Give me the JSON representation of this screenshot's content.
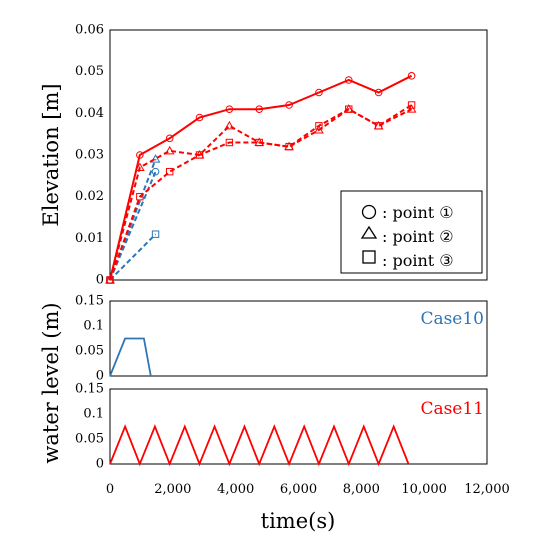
{
  "chart_data": [
    {
      "type": "line",
      "ylabel": "Elevation [m]",
      "xlim": [
        0,
        12000
      ],
      "ylim": [
        0,
        0.06
      ],
      "yticks": [
        "0",
        "0.01",
        "0.02",
        "0.03",
        "0.04",
        "0.05",
        "0.06"
      ],
      "legend": {
        "position": "bottom-right",
        "entries": [
          {
            "marker": "circle",
            "label": ": point ①"
          },
          {
            "marker": "triangle",
            "label": ": point ②"
          },
          {
            "marker": "square",
            "label": ": point ③"
          }
        ]
      },
      "series": [
        {
          "case": "Case10",
          "point": "①",
          "marker": "circle",
          "color": "#2E75B6",
          "dash": true,
          "x": [
            0,
            1450
          ],
          "y": [
            0,
            0.026
          ]
        },
        {
          "case": "Case10",
          "point": "②",
          "marker": "triangle",
          "color": "#2E75B6",
          "dash": true,
          "x": [
            0,
            1450
          ],
          "y": [
            0,
            0.029
          ]
        },
        {
          "case": "Case10",
          "point": "③",
          "marker": "square",
          "color": "#2E75B6",
          "dash": true,
          "x": [
            0,
            1450
          ],
          "y": [
            0,
            0.011
          ]
        },
        {
          "case": "Case11",
          "point": "①",
          "marker": "circle",
          "color": "#FF0000",
          "dash": false,
          "x": [
            0,
            950,
            1900,
            2850,
            3800,
            4750,
            5700,
            6650,
            7600,
            8550,
            9600
          ],
          "y": [
            0,
            0.03,
            0.034,
            0.039,
            0.041,
            0.041,
            0.042,
            0.045,
            0.048,
            0.045,
            0.049
          ]
        },
        {
          "case": "Case11",
          "point": "②",
          "marker": "triangle",
          "color": "#FF0000",
          "dash": true,
          "x": [
            0,
            950,
            1900,
            2850,
            3800,
            4750,
            5700,
            6650,
            7600,
            8550,
            9600
          ],
          "y": [
            0,
            0.027,
            0.031,
            0.03,
            0.037,
            0.033,
            0.032,
            0.036,
            0.041,
            0.037,
            0.041
          ]
        },
        {
          "case": "Case11",
          "point": "③",
          "marker": "square",
          "color": "#FF0000",
          "dash": true,
          "x": [
            0,
            950,
            1900,
            2850,
            3800,
            4750,
            5700,
            6650,
            7600,
            8550,
            9600
          ],
          "y": [
            0,
            0.02,
            0.026,
            0.03,
            0.033,
            0.033,
            0.032,
            0.037,
            0.041,
            0.037,
            0.042
          ]
        }
      ]
    },
    {
      "type": "line",
      "label": "Case10",
      "ylim": [
        0,
        0.15
      ],
      "yticks": [
        "0",
        "0.05",
        "0.1",
        "0.15"
      ],
      "series": [
        {
          "color": "#2E75B6",
          "x": [
            0,
            480,
            1080,
            1300
          ],
          "y": [
            0,
            0.075,
            0.075,
            0
          ]
        }
      ]
    },
    {
      "type": "line",
      "label": "Case11",
      "ylim": [
        0,
        0.15
      ],
      "yticks": [
        "0",
        "0.05",
        "0.1",
        "0.15"
      ],
      "series": [
        {
          "color": "#FF0000",
          "x": [
            0,
            480,
            950,
            1430,
            1900,
            2380,
            2850,
            3330,
            3800,
            4280,
            4750,
            5230,
            5700,
            6180,
            6650,
            7130,
            7600,
            8080,
            8550,
            9030,
            9500
          ],
          "y": [
            0,
            0.075,
            0,
            0.075,
            0,
            0.075,
            0,
            0.075,
            0,
            0.075,
            0,
            0.075,
            0,
            0.075,
            0,
            0.075,
            0,
            0.075,
            0,
            0.075,
            0
          ]
        }
      ]
    }
  ],
  "shared_axes": {
    "xlabel": "time(s)",
    "ylabel_bottom": "water level (m)",
    "xticks": [
      "0",
      "2,000",
      "4,000",
      "6,000",
      "8,000",
      "10,000",
      "12,000"
    ],
    "xtick_values": [
      0,
      2000,
      4000,
      6000,
      8000,
      10000,
      12000
    ]
  }
}
